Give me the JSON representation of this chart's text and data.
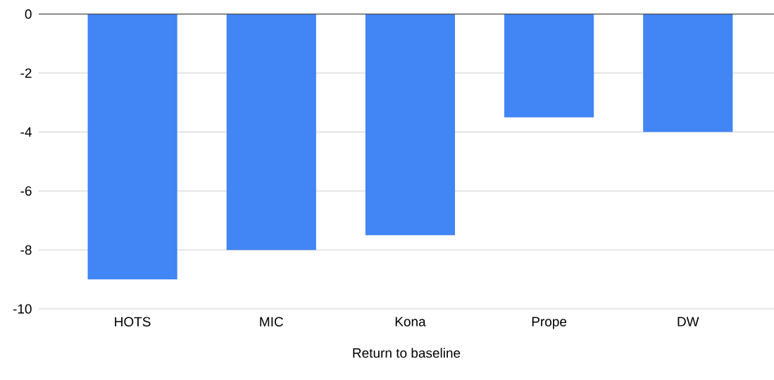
{
  "chart_data": {
    "type": "bar",
    "xlabel": "Return to baseline",
    "categories": [
      "HOTS",
      "MIC",
      "Kona",
      "Prope",
      "DW"
    ],
    "values": [
      -9,
      -8,
      -7.5,
      -3.5,
      -4
    ],
    "color": "#4285f4",
    "ylim": [
      -10,
      0
    ],
    "yticks": [
      0,
      -2,
      -4,
      -6,
      -8,
      -10
    ],
    "grid": "y"
  }
}
